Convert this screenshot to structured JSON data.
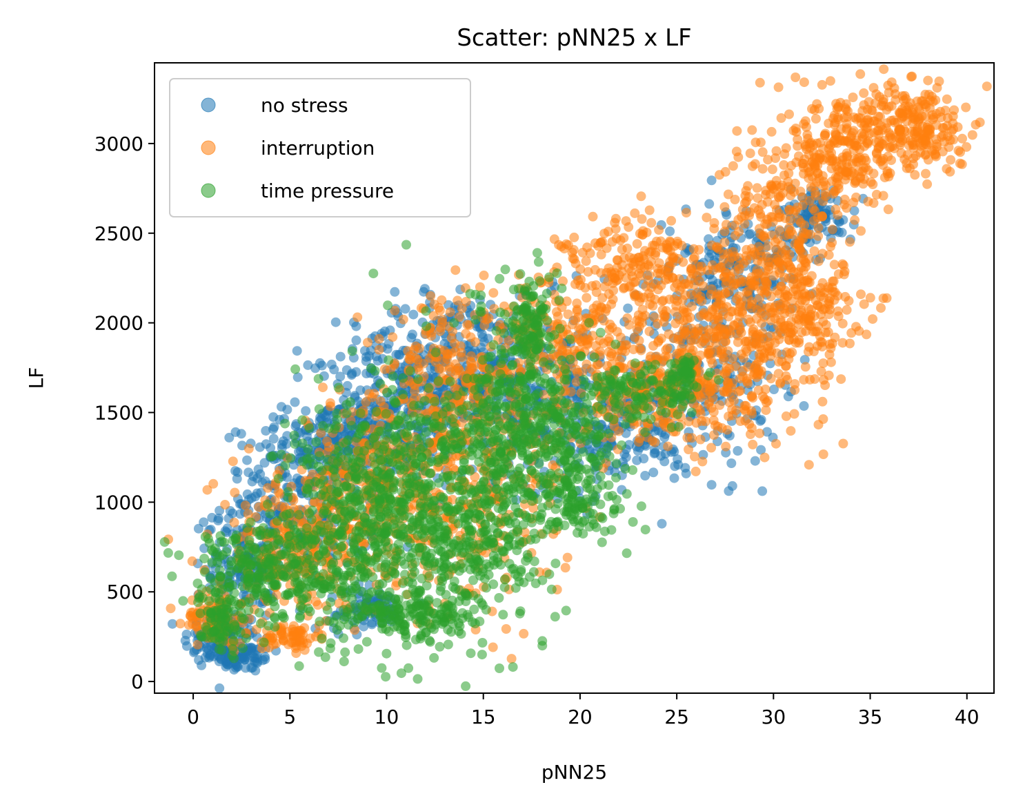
{
  "chart_data": {
    "type": "scatter",
    "title": "Scatter: pNN25 x LF",
    "xlabel": "pNN25",
    "ylabel": "LF",
    "xlim": [
      -2,
      41.4
    ],
    "ylim": [
      -65,
      3450
    ],
    "xticks": [
      0,
      5,
      10,
      15,
      20,
      25,
      30,
      35,
      40
    ],
    "yticks": [
      0,
      500,
      1000,
      1500,
      2000,
      2500,
      3000
    ],
    "legend_position": "upper-left",
    "series": [
      {
        "name": "no stress",
        "color": "#1f77b4",
        "clusters": [
          {
            "cx": 1.5,
            "cy": 230,
            "sx": 1.0,
            "sy": 80,
            "n": 120
          },
          {
            "cx": 2.6,
            "cy": 130,
            "sx": 0.8,
            "sy": 40,
            "n": 60
          },
          {
            "cx": 2.5,
            "cy": 650,
            "sx": 0.9,
            "sy": 200,
            "n": 120
          },
          {
            "cx": 5.5,
            "cy": 1000,
            "sx": 2.0,
            "sy": 220,
            "n": 260
          },
          {
            "cx": 7.5,
            "cy": 1350,
            "sx": 1.4,
            "sy": 110,
            "n": 150
          },
          {
            "cx": 10.5,
            "cy": 1500,
            "sx": 2.0,
            "sy": 200,
            "n": 220
          },
          {
            "cx": 13.5,
            "cy": 1800,
            "sx": 2.6,
            "sy": 180,
            "n": 260
          },
          {
            "cx": 18.0,
            "cy": 1600,
            "sx": 3.0,
            "sy": 250,
            "n": 320
          },
          {
            "cx": 22.5,
            "cy": 1350,
            "sx": 1.6,
            "sy": 130,
            "n": 120
          },
          {
            "cx": 26.5,
            "cy": 1800,
            "sx": 2.0,
            "sy": 300,
            "n": 200
          },
          {
            "cx": 28.5,
            "cy": 2300,
            "sx": 1.5,
            "sy": 180,
            "n": 160
          },
          {
            "cx": 32.2,
            "cy": 2600,
            "sx": 1.0,
            "sy": 80,
            "n": 90
          },
          {
            "cx": 9.0,
            "cy": 400,
            "sx": 1.0,
            "sy": 60,
            "n": 70
          }
        ]
      },
      {
        "name": "interruption",
        "color": "#ff7f0e",
        "clusters": [
          {
            "cx": 1.2,
            "cy": 350,
            "sx": 0.8,
            "sy": 70,
            "n": 100
          },
          {
            "cx": 5.0,
            "cy": 250,
            "sx": 0.7,
            "sy": 40,
            "n": 60
          },
          {
            "cx": 5.5,
            "cy": 750,
            "sx": 2.2,
            "sy": 200,
            "n": 280
          },
          {
            "cx": 9.5,
            "cy": 1100,
            "sx": 2.4,
            "sy": 250,
            "n": 300
          },
          {
            "cx": 13.0,
            "cy": 1700,
            "sx": 1.5,
            "sy": 200,
            "n": 160
          },
          {
            "cx": 14.5,
            "cy": 1100,
            "sx": 2.5,
            "sy": 350,
            "n": 300
          },
          {
            "cx": 19.5,
            "cy": 1900,
            "sx": 2.5,
            "sy": 220,
            "n": 260
          },
          {
            "cx": 23.5,
            "cy": 2300,
            "sx": 2.2,
            "sy": 150,
            "n": 220
          },
          {
            "cx": 24.5,
            "cy": 1600,
            "sx": 2.5,
            "sy": 150,
            "n": 240
          },
          {
            "cx": 28.0,
            "cy": 1950,
            "sx": 2.4,
            "sy": 250,
            "n": 380
          },
          {
            "cx": 30.5,
            "cy": 2500,
            "sx": 1.5,
            "sy": 300,
            "n": 260
          },
          {
            "cx": 33.5,
            "cy": 2950,
            "sx": 1.3,
            "sy": 180,
            "n": 220
          },
          {
            "cx": 37.2,
            "cy": 3080,
            "sx": 1.4,
            "sy": 130,
            "n": 240
          },
          {
            "cx": 32.0,
            "cy": 2050,
            "sx": 1.3,
            "sy": 120,
            "n": 110
          }
        ]
      },
      {
        "name": "time pressure",
        "color": "#2ca02c",
        "clusters": [
          {
            "cx": 1.3,
            "cy": 350,
            "sx": 0.5,
            "sy": 80,
            "n": 70
          },
          {
            "cx": 3.5,
            "cy": 600,
            "sx": 2.0,
            "sy": 150,
            "n": 260
          },
          {
            "cx": 8.5,
            "cy": 850,
            "sx": 2.2,
            "sy": 350,
            "n": 420
          },
          {
            "cx": 12.0,
            "cy": 1000,
            "sx": 2.3,
            "sy": 380,
            "n": 480
          },
          {
            "cx": 11.5,
            "cy": 350,
            "sx": 1.6,
            "sy": 50,
            "n": 120
          },
          {
            "cx": 15.5,
            "cy": 900,
            "sx": 1.6,
            "sy": 300,
            "n": 260
          },
          {
            "cx": 17.5,
            "cy": 2050,
            "sx": 0.5,
            "sy": 130,
            "n": 100
          },
          {
            "cx": 16.5,
            "cy": 1600,
            "sx": 1.4,
            "sy": 250,
            "n": 180
          },
          {
            "cx": 19.0,
            "cy": 1400,
            "sx": 1.8,
            "sy": 220,
            "n": 240
          },
          {
            "cx": 20.0,
            "cy": 1000,
            "sx": 1.2,
            "sy": 100,
            "n": 100
          },
          {
            "cx": 23.5,
            "cy": 1620,
            "sx": 1.5,
            "sy": 80,
            "n": 130
          },
          {
            "cx": 25.5,
            "cy": 1720,
            "sx": 0.4,
            "sy": 40,
            "n": 40
          }
        ]
      }
    ]
  }
}
